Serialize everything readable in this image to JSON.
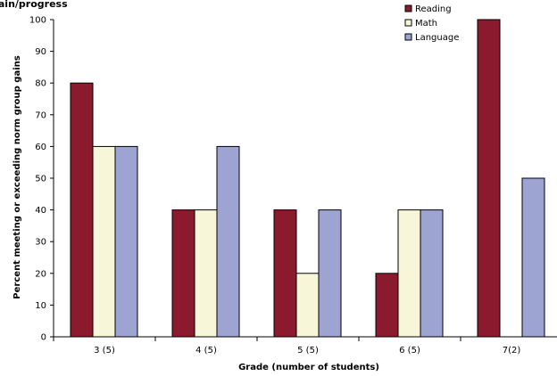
{
  "chart_data": {
    "type": "bar",
    "title": "",
    "title_fragment": "gain/progress",
    "xlabel": "Grade (number of students)",
    "ylabel": "Percent meeting or exceeding norm group gains",
    "categories": [
      "3 (5)",
      "4 (5)",
      "5 (5)",
      "6 (5)",
      "7(2)"
    ],
    "ylim": [
      0,
      100
    ],
    "yticks": [
      0,
      10,
      20,
      30,
      40,
      50,
      60,
      70,
      80,
      90,
      100
    ],
    "grid": false,
    "legend_position": "top-right",
    "series": [
      {
        "name": "Reading",
        "color": "#8b1a2e",
        "values": [
          80,
          40,
          40,
          20,
          100
        ]
      },
      {
        "name": "Math",
        "color": "#f8f6d8",
        "values": [
          60,
          40,
          20,
          40,
          0
        ]
      },
      {
        "name": "Language",
        "color": "#9ea4d2",
        "values": [
          60,
          60,
          40,
          40,
          50
        ]
      }
    ]
  }
}
